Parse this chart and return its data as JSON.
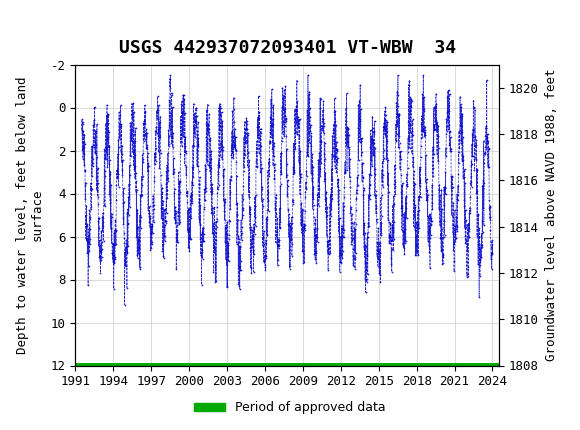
{
  "title": "USGS 442937072093401 VT-WBW  34",
  "xlabel": "",
  "ylabel_left": "Depth to water level, feet below land\nsurface",
  "ylabel_right": "Groundwater level above NAVD 1988, feet",
  "xlim": [
    1991,
    2024.5
  ],
  "ylim_left": [
    12,
    -2
  ],
  "ylim_right": [
    1808,
    1821
  ],
  "yticks_left": [
    -2,
    0,
    2,
    4,
    6,
    8,
    10,
    12
  ],
  "yticks_right": [
    1808,
    1810,
    1812,
    1814,
    1816,
    1818,
    1820
  ],
  "xticks": [
    1991,
    1994,
    1997,
    2000,
    2003,
    2006,
    2009,
    2012,
    2015,
    2018,
    2021,
    2024
  ],
  "header_color": "#2E6B3E",
  "data_color": "#0000CC",
  "approved_color": "#00AA00",
  "background_color": "#ffffff",
  "grid_color": "#cccccc",
  "title_fontsize": 13,
  "axis_label_fontsize": 9,
  "tick_fontsize": 9,
  "legend_label": "Period of approved data"
}
